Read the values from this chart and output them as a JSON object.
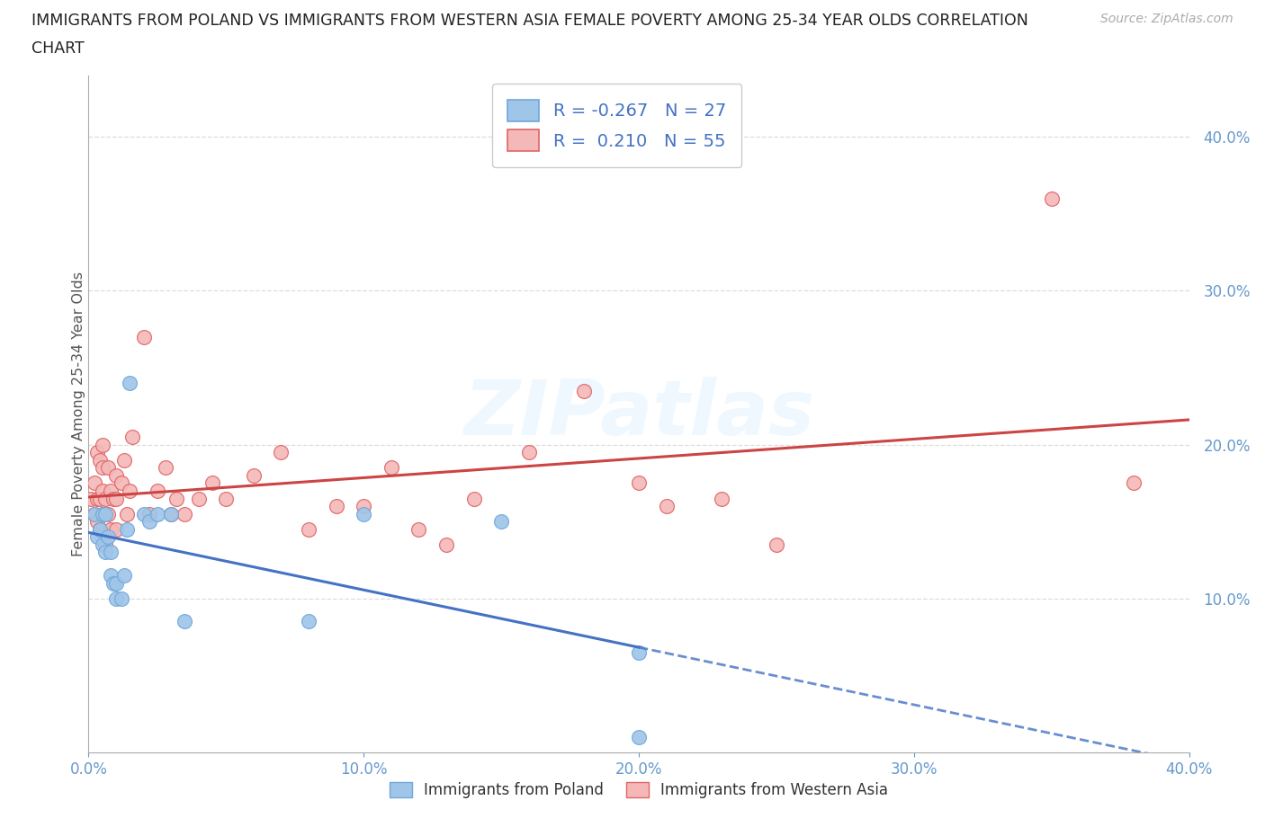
{
  "title_line1": "IMMIGRANTS FROM POLAND VS IMMIGRANTS FROM WESTERN ASIA FEMALE POVERTY AMONG 25-34 YEAR OLDS CORRELATION",
  "title_line2": "CHART",
  "source": "Source: ZipAtlas.com",
  "ylabel": "Female Poverty Among 25-34 Year Olds",
  "xlim": [
    0.0,
    0.4
  ],
  "ylim": [
    0.0,
    0.44
  ],
  "xtick_vals": [
    0.0,
    0.1,
    0.2,
    0.3,
    0.4
  ],
  "ytick_vals": [
    0.1,
    0.2,
    0.3,
    0.4
  ],
  "xtick_labels": [
    "0.0%",
    "10.0%",
    "20.0%",
    "30.0%",
    "40.0%"
  ],
  "ytick_labels": [
    "10.0%",
    "20.0%",
    "30.0%",
    "40.0%"
  ],
  "poland_color": "#9fc5e8",
  "poland_edge_color": "#6fa8dc",
  "wa_color": "#f4b8b8",
  "wa_edge_color": "#e06666",
  "poland_R": -0.267,
  "poland_N": 27,
  "wa_R": 0.21,
  "wa_N": 55,
  "poland_line_color": "#4472c4",
  "wa_line_color": "#cc4444",
  "tick_color": "#6699cc",
  "grid_color": "#dddddd",
  "spine_color": "#aaaaaa",
  "watermark": "ZIPatlas",
  "poland_x": [
    0.002,
    0.003,
    0.004,
    0.005,
    0.005,
    0.006,
    0.006,
    0.007,
    0.008,
    0.008,
    0.009,
    0.01,
    0.01,
    0.012,
    0.013,
    0.014,
    0.015,
    0.02,
    0.022,
    0.025,
    0.03,
    0.035,
    0.08,
    0.1,
    0.15,
    0.2,
    0.2
  ],
  "poland_y": [
    0.155,
    0.14,
    0.145,
    0.135,
    0.155,
    0.13,
    0.155,
    0.14,
    0.13,
    0.115,
    0.11,
    0.1,
    0.11,
    0.1,
    0.115,
    0.145,
    0.24,
    0.155,
    0.15,
    0.155,
    0.155,
    0.085,
    0.085,
    0.155,
    0.15,
    0.065,
    0.01
  ],
  "wa_x": [
    0.001,
    0.002,
    0.002,
    0.003,
    0.003,
    0.003,
    0.004,
    0.004,
    0.004,
    0.005,
    0.005,
    0.005,
    0.005,
    0.006,
    0.006,
    0.007,
    0.007,
    0.008,
    0.008,
    0.009,
    0.01,
    0.01,
    0.01,
    0.012,
    0.013,
    0.014,
    0.015,
    0.016,
    0.02,
    0.022,
    0.025,
    0.028,
    0.03,
    0.032,
    0.035,
    0.04,
    0.045,
    0.05,
    0.06,
    0.07,
    0.08,
    0.09,
    0.1,
    0.11,
    0.12,
    0.13,
    0.14,
    0.16,
    0.18,
    0.2,
    0.21,
    0.23,
    0.25,
    0.35,
    0.38
  ],
  "wa_y": [
    0.165,
    0.155,
    0.175,
    0.15,
    0.165,
    0.195,
    0.145,
    0.165,
    0.19,
    0.155,
    0.17,
    0.185,
    0.2,
    0.135,
    0.165,
    0.155,
    0.185,
    0.145,
    0.17,
    0.165,
    0.145,
    0.165,
    0.18,
    0.175,
    0.19,
    0.155,
    0.17,
    0.205,
    0.27,
    0.155,
    0.17,
    0.185,
    0.155,
    0.165,
    0.155,
    0.165,
    0.175,
    0.165,
    0.18,
    0.195,
    0.145,
    0.16,
    0.16,
    0.185,
    0.145,
    0.135,
    0.165,
    0.195,
    0.235,
    0.175,
    0.16,
    0.165,
    0.135,
    0.36,
    0.175
  ]
}
